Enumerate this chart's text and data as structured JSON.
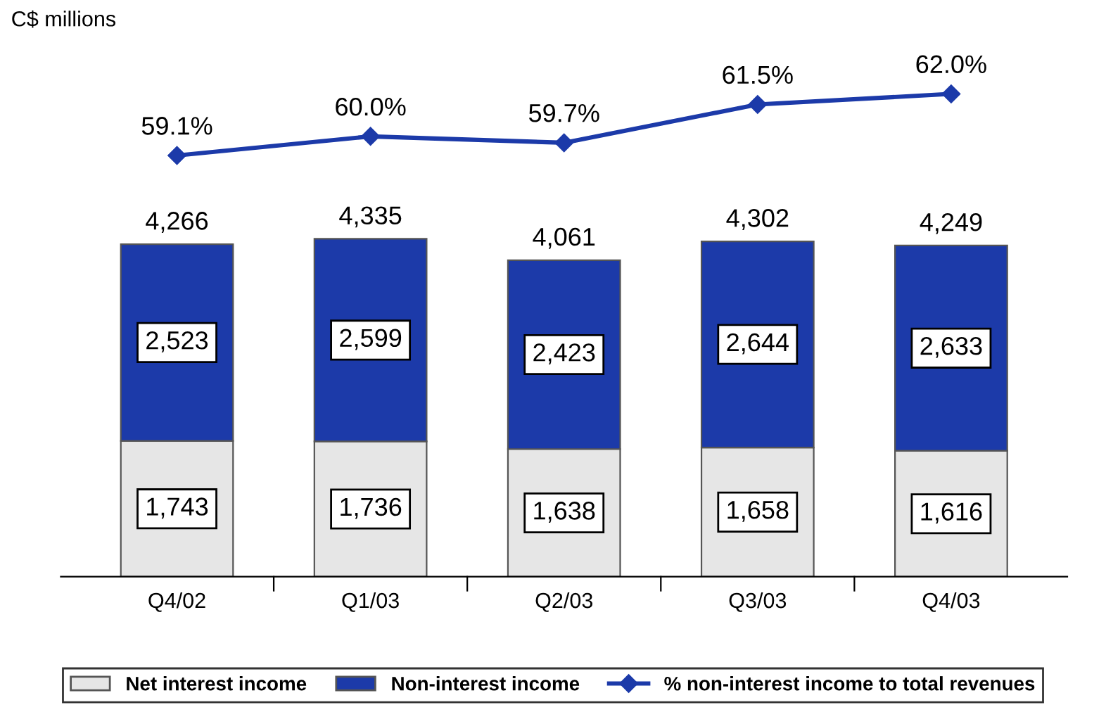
{
  "chart_data": [
    {
      "type": "line",
      "categories": [
        null,
        null,
        null,
        null,
        null
      ],
      "series": [
        {
          "name": "% non-interest income to total revenues",
          "color": "#1c3aa9",
          "marker": "diamond",
          "values": [
            59.1,
            60.0,
            59.7,
            61.5,
            62.0
          ],
          "value_labels": [
            "59.1%",
            "60.0%",
            "59.7%",
            "61.5%",
            "62.0%"
          ]
        }
      ],
      "tick_labels": false,
      "grid": false,
      "legend": "bottom"
    },
    {
      "type": "bar",
      "annotations": [
        "C$ millions"
      ],
      "categories": [
        "Q4/02",
        "Q1/03",
        "Q2/03",
        "Q3/03",
        "Q4/03"
      ],
      "stacked": true,
      "series": [
        {
          "name": "Net interest income",
          "color": "#e6e6e6",
          "values": [
            1743,
            1736,
            1638,
            1658,
            1616
          ],
          "value_labels": [
            "1,743",
            "1,736",
            "1,638",
            "1,658",
            "1,616"
          ]
        },
        {
          "name": "Non-interest income",
          "color": "#1c3aa9",
          "values": [
            2523,
            2599,
            2423,
            2644,
            2633
          ],
          "value_labels": [
            "2,523",
            "2,599",
            "2,423",
            "2,644",
            "2,633"
          ]
        }
      ],
      "totals": [
        "4,266",
        "4,335",
        "4,061",
        "4,302",
        "4,249"
      ],
      "tick_labels": "x",
      "grid": false,
      "legend": "bottom"
    }
  ]
}
